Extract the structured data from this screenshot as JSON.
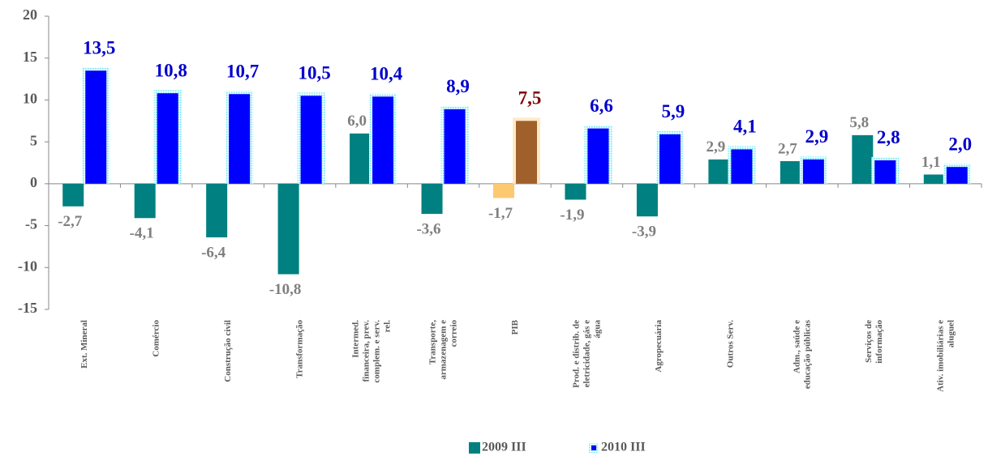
{
  "chart_data": {
    "type": "bar",
    "categories": [
      "Ext. Mineral",
      "Comércio",
      "Construção civil",
      "Transformação",
      "Intermed. financeira, prev. complem. e serv. rel.",
      "Transporte, armazenagem e correio",
      "PIB",
      "Prod. e distrib. de eletricidade, gás e água",
      "Agropecuária",
      "Outros Serv.",
      "Adm., saúde e educação públicas",
      "Serviços de informação",
      "Ativ. imobiliárias e aluguel"
    ],
    "series": [
      {
        "name": "2009 III",
        "color": "#008080",
        "label_color": "#7f7f7f",
        "point_colors": [
          null,
          null,
          null,
          null,
          null,
          null,
          "#fcc870",
          null,
          null,
          null,
          null,
          null,
          null
        ],
        "values": [
          -2.7,
          -4.1,
          -6.4,
          -10.8,
          6.0,
          -3.6,
          -1.7,
          -1.9,
          -3.9,
          2.9,
          2.7,
          5.8,
          1.1
        ],
        "value_labels": [
          "-2,7",
          "-4,1",
          "-6,4",
          "-10,8",
          "6,0",
          "-3,6",
          "-1,7",
          "-1,9",
          "-3,9",
          "2,9",
          "2,7",
          "5,8",
          "1,1"
        ]
      },
      {
        "name": "2010 III",
        "color": "#0000ff",
        "label_color": "#0000cc",
        "point_colors": [
          null,
          null,
          null,
          null,
          null,
          null,
          "#a0602b",
          null,
          null,
          null,
          null,
          null,
          null
        ],
        "point_label_colors": [
          null,
          null,
          null,
          null,
          null,
          null,
          "#800000",
          null,
          null,
          null,
          null,
          null,
          null
        ],
        "values": [
          13.5,
          10.8,
          10.7,
          10.5,
          10.4,
          8.9,
          7.5,
          6.6,
          5.9,
          4.1,
          2.9,
          2.8,
          2.0
        ],
        "value_labels": [
          "13,5",
          "10,8",
          "10,7",
          "10,5",
          "10,4",
          "8,9",
          "7,5",
          "6,6",
          "5,9",
          "4,1",
          "2,9",
          "2,8",
          "2,0"
        ]
      }
    ],
    "ylim": [
      -15,
      20
    ],
    "yticks": [
      -15,
      -10,
      -5,
      0,
      5,
      10,
      15,
      20
    ],
    "grid": false,
    "legend": "bottom"
  }
}
